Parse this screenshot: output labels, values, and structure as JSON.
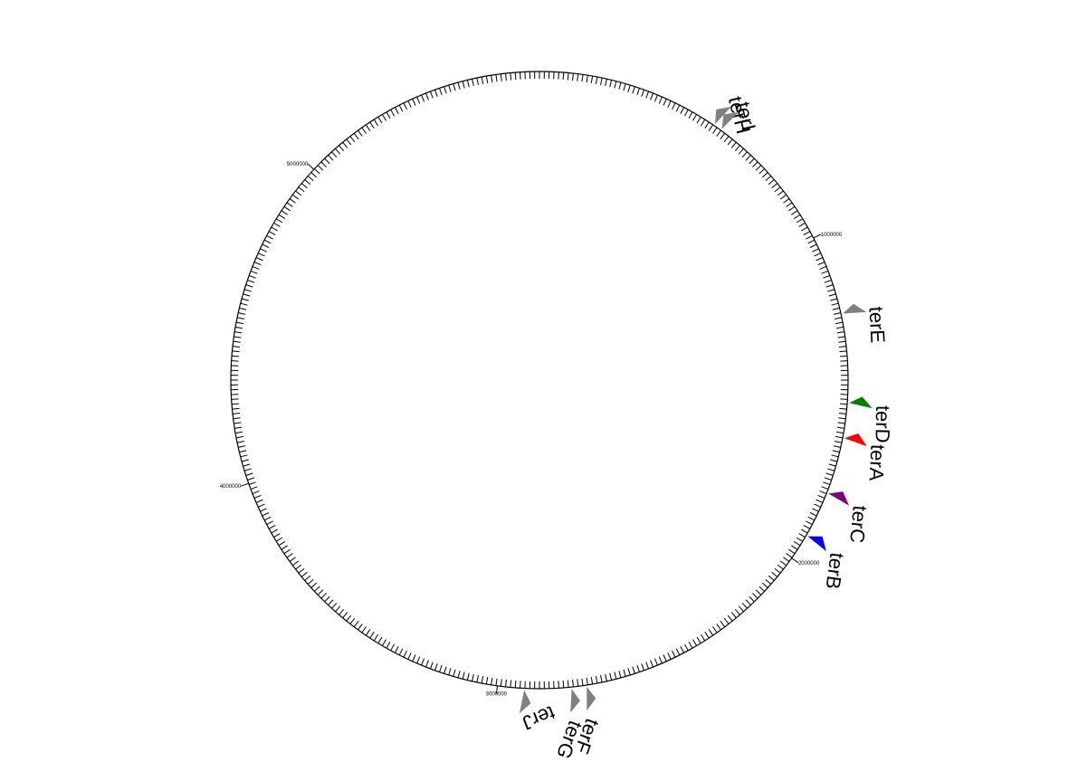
{
  "genome": {
    "tick_labels": [
      {
        "value": 1000000,
        "text": "1000000"
      },
      {
        "value": 2000000,
        "text": "2000000"
      },
      {
        "value": 3000000,
        "text": "3000000"
      },
      {
        "value": 4000000,
        "text": "4000000"
      },
      {
        "value": 5000000,
        "text": "5000000"
      }
    ],
    "sites": [
      {
        "name": "terH",
        "color": "#808080",
        "position": 550000
      },
      {
        "name": "terI",
        "color": "#808080",
        "position": 575000
      },
      {
        "name": "terE",
        "color": "#808080",
        "position": 1240000
      },
      {
        "name": "terD",
        "color": "#008000",
        "position": 1505000
      },
      {
        "name": "terA",
        "color": "#ff0000",
        "position": 1610000
      },
      {
        "name": "terC",
        "color": "#800080",
        "position": 1780000
      },
      {
        "name": "terB",
        "color": "#0000ff",
        "position": 1920000
      },
      {
        "name": "terF",
        "color": "#808080",
        "position": 2735000
      },
      {
        "name": "terG",
        "color": "#808080",
        "position": 2780000
      },
      {
        "name": "terJ",
        "color": "#808080",
        "position": 2920000
      }
    ]
  }
}
